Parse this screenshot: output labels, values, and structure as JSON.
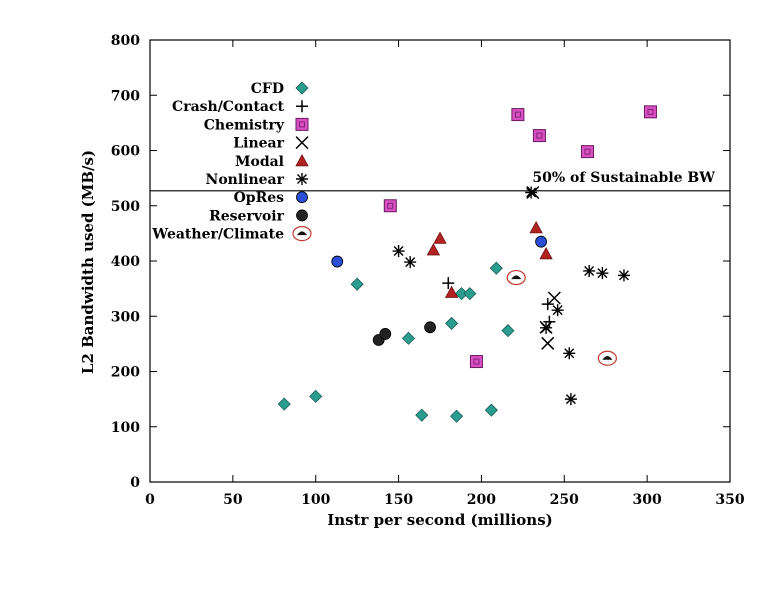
{
  "chart_data": {
    "type": "scatter",
    "title": "",
    "xlabel": "Instr per second (millions)",
    "ylabel": "L2 Bandwidth used (MB/s)",
    "xlim": [
      0,
      350
    ],
    "ylim": [
      0,
      800
    ],
    "xticks": [
      0,
      50,
      100,
      150,
      200,
      250,
      300,
      350
    ],
    "yticks": [
      0,
      100,
      200,
      300,
      400,
      500,
      600,
      700,
      800
    ],
    "grid": false,
    "legend_position": "top-left",
    "reference_line": {
      "y": 527,
      "label": "50% of Sustainable BW"
    },
    "series": [
      {
        "name": "CFD",
        "marker": "diamond",
        "color": "#2a9d8f",
        "points": [
          [
            81,
            141
          ],
          [
            100,
            155
          ],
          [
            125,
            358
          ],
          [
            156,
            260
          ],
          [
            164,
            121
          ],
          [
            182,
            287
          ],
          [
            185,
            119
          ],
          [
            188,
            341
          ],
          [
            193,
            341
          ],
          [
            206,
            130
          ],
          [
            209,
            387
          ],
          [
            216,
            274
          ]
        ]
      },
      {
        "name": "Crash/Contact",
        "marker": "plus",
        "color": "#000000",
        "points": [
          [
            180,
            360
          ],
          [
            240,
            322
          ],
          [
            241,
            290
          ]
        ]
      },
      {
        "name": "Chemistry",
        "marker": "square",
        "color": "#d94fc4",
        "points": [
          [
            145,
            500
          ],
          [
            197,
            218
          ],
          [
            222,
            665
          ],
          [
            235,
            627
          ],
          [
            264,
            598
          ],
          [
            302,
            670
          ]
        ]
      },
      {
        "name": "Linear",
        "marker": "x",
        "color": "#000000",
        "points": [
          [
            231,
            524
          ],
          [
            239,
            280
          ],
          [
            240,
            251
          ],
          [
            244,
            333
          ]
        ]
      },
      {
        "name": "Modal",
        "marker": "triangle",
        "color": "#b22222",
        "points": [
          [
            171,
            420
          ],
          [
            175,
            441
          ],
          [
            182,
            343
          ],
          [
            233,
            460
          ],
          [
            239,
            413
          ]
        ]
      },
      {
        "name": "Nonlinear",
        "marker": "asterisk",
        "color": "#000000",
        "points": [
          [
            150,
            418
          ],
          [
            157,
            398
          ],
          [
            230,
            524
          ],
          [
            246,
            311
          ],
          [
            253,
            233
          ],
          [
            254,
            150
          ],
          [
            265,
            382
          ],
          [
            273,
            378
          ],
          [
            286,
            374
          ],
          [
            239,
            279
          ]
        ]
      },
      {
        "name": "OpRes",
        "marker": "circle",
        "color": "#2b4fd6",
        "points": [
          [
            113,
            399
          ],
          [
            236,
            435
          ]
        ]
      },
      {
        "name": "Reservoir",
        "marker": "circle",
        "color": "#222222",
        "points": [
          [
            138,
            257
          ],
          [
            142,
            268
          ],
          [
            169,
            280
          ]
        ]
      },
      {
        "name": "Weather/Climate",
        "marker": "ringed-dot",
        "color": "#c0392b",
        "points": [
          [
            221,
            370
          ],
          [
            276,
            224
          ]
        ]
      }
    ]
  }
}
